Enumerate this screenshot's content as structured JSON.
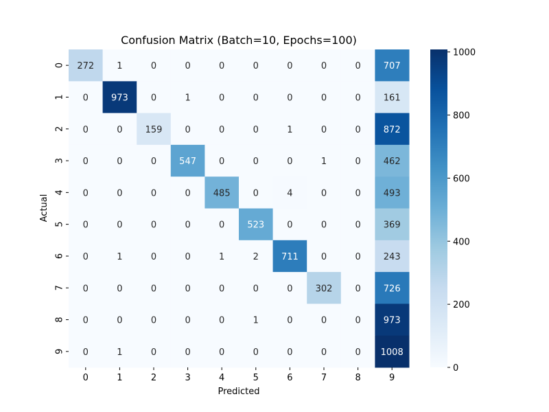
{
  "chart_data": {
    "type": "heatmap",
    "title": "Confusion Matrix (Batch=10, Epochs=100)",
    "xlabel": "Predicted",
    "ylabel": "Actual",
    "x_categories": [
      "0",
      "1",
      "2",
      "3",
      "4",
      "5",
      "6",
      "7",
      "8",
      "9"
    ],
    "y_categories": [
      "0",
      "1",
      "2",
      "3",
      "4",
      "5",
      "6",
      "7",
      "8",
      "9"
    ],
    "values": [
      [
        272,
        1,
        0,
        0,
        0,
        0,
        0,
        0,
        0,
        707
      ],
      [
        0,
        973,
        0,
        1,
        0,
        0,
        0,
        0,
        0,
        161
      ],
      [
        0,
        0,
        159,
        0,
        0,
        0,
        1,
        0,
        0,
        872
      ],
      [
        0,
        0,
        0,
        547,
        0,
        0,
        0,
        1,
        0,
        462
      ],
      [
        0,
        0,
        0,
        0,
        485,
        0,
        4,
        0,
        0,
        493
      ],
      [
        0,
        0,
        0,
        0,
        0,
        523,
        0,
        0,
        0,
        369
      ],
      [
        0,
        1,
        0,
        0,
        1,
        2,
        711,
        0,
        0,
        243
      ],
      [
        0,
        0,
        0,
        0,
        0,
        0,
        0,
        302,
        0,
        726
      ],
      [
        0,
        0,
        0,
        0,
        0,
        1,
        0,
        0,
        0,
        973
      ],
      [
        0,
        1,
        0,
        0,
        0,
        0,
        0,
        0,
        0,
        1008
      ]
    ],
    "colormap": "Blues",
    "colorbar": {
      "range": [
        0,
        1008
      ],
      "ticks": [
        0,
        200,
        400,
        600,
        800,
        1000
      ]
    },
    "legend": "none",
    "grid": false
  }
}
